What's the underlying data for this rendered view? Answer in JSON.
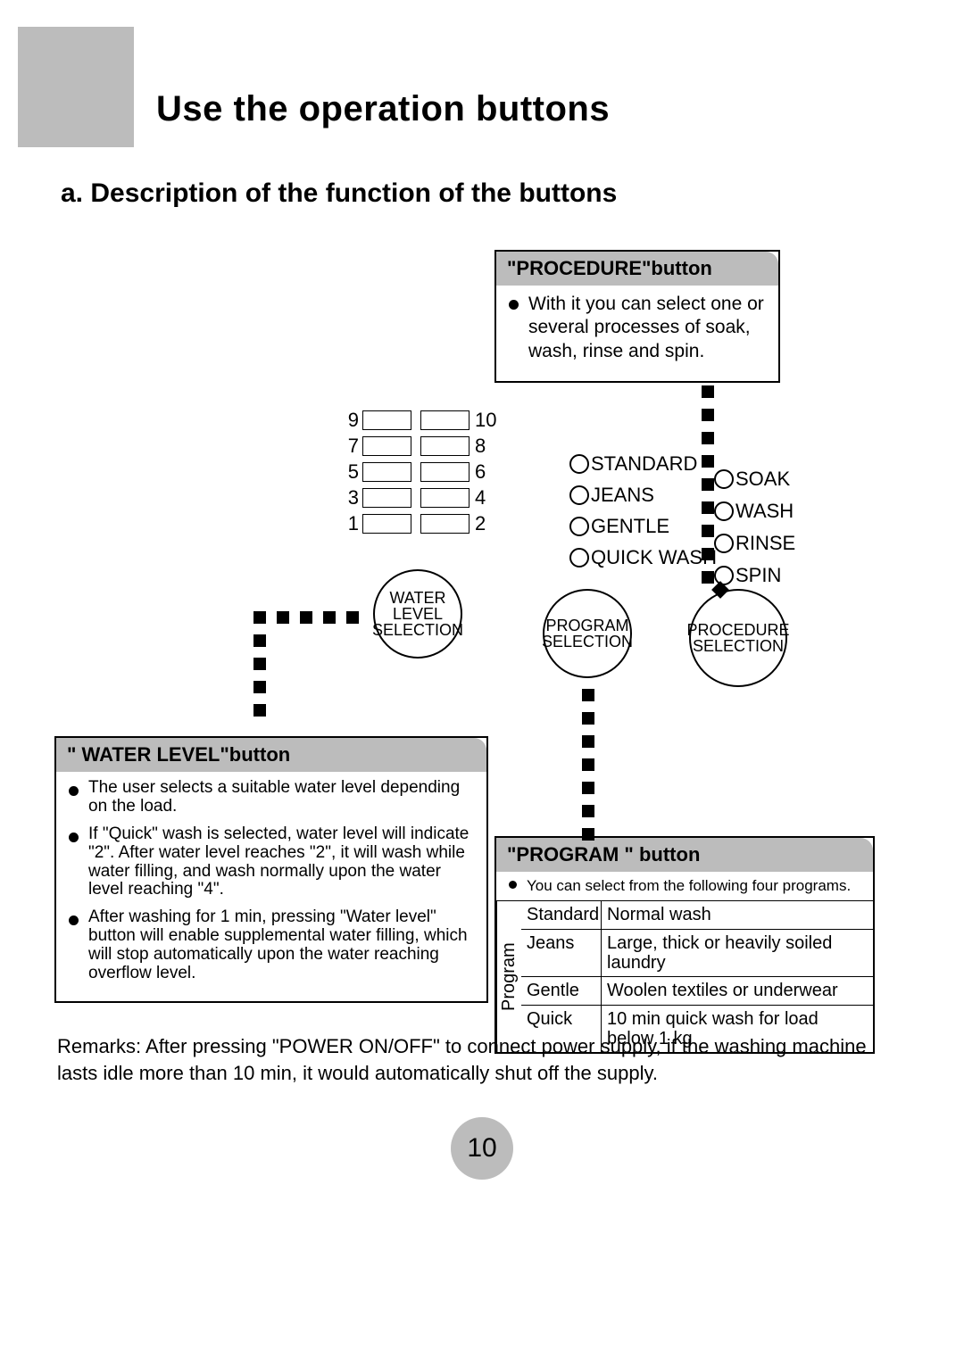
{
  "title": "Use the operation buttons",
  "subtitle": "a. Description of the function of the buttons",
  "procedure_box": {
    "header": "\"PROCEDURE\"button",
    "bullet": "With it you can select one or several processes of soak, wash, rinse and spin."
  },
  "waterlevel_box": {
    "header": "\" WATER LEVEL\"button",
    "bullets": [
      "The user selects a suitable water level depending on the load.",
      "If \"Quick\" wash is selected, water level will indicate \"2\". After water level reaches \"2\", it will wash while water filling, and wash normally upon the water level reaching \"4\".",
      "After washing for 1 min, pressing \"Water level\" button will enable supplemental water filling, which will stop automatically upon the water reaching overflow level."
    ]
  },
  "program_box": {
    "header": "\"PROGRAM \" button",
    "intro": "You can select from the following four programs.",
    "side_label": "Program",
    "rows": [
      {
        "name": "Standard",
        "desc": "Normal wash"
      },
      {
        "name": "Jeans",
        "desc": "Large, thick or heavily soiled laundry"
      },
      {
        "name": "Gentle",
        "desc": "Woolen textiles or underwear"
      },
      {
        "name": "Quick",
        "desc": "10 min quick wash for load below 1 kg"
      }
    ]
  },
  "panel": {
    "water_levels": [
      [
        9,
        10
      ],
      [
        7,
        8
      ],
      [
        5,
        6
      ],
      [
        3,
        4
      ],
      [
        1,
        2
      ]
    ],
    "btn_water": "WATER\nLEVEL\nSELECTION",
    "btn_program": "PROGRAM\nSELECTION",
    "btn_procedure": "PROCEDURE\nSELECTION",
    "program_options": [
      "STANDARD",
      "JEANS",
      "GENTLE",
      "QUICK WASH"
    ],
    "procedure_options": [
      "SOAK",
      "WASH",
      "RINSE",
      "SPIN"
    ]
  },
  "remarks": "Remarks: After pressing \"POWER ON/OFF\" to connect power supply, if the washing machine lasts idle more than 10 min, it would automatically shut off the supply.",
  "page_number": "10",
  "colors": {
    "gray": "#bcbcbc"
  }
}
